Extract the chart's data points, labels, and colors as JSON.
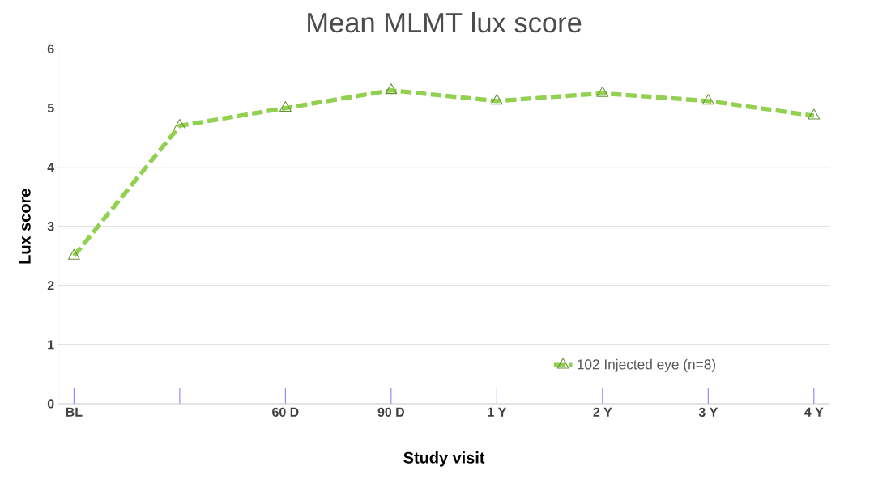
{
  "chart_data": {
    "type": "line",
    "title": "Mean  MLMT lux score",
    "xlabel": "Study visit",
    "ylabel": "Lux score",
    "categories": [
      "BL",
      null,
      "60 D",
      "90 D",
      "1 Y",
      "2 Y",
      "3 Y",
      "4 Y"
    ],
    "series": [
      {
        "name": "102 Injected eye (n=8)",
        "color": "#92d050",
        "values": [
          2.5,
          4.7,
          5.0,
          5.3,
          5.12,
          5.25,
          5.12,
          4.87
        ]
      }
    ],
    "ylim": [
      0,
      6
    ],
    "yticks": [
      0,
      1,
      2,
      3,
      4,
      5,
      6
    ],
    "grid": "y",
    "legend": "bottom right",
    "marker": "triangle",
    "line_style": "dashed"
  }
}
